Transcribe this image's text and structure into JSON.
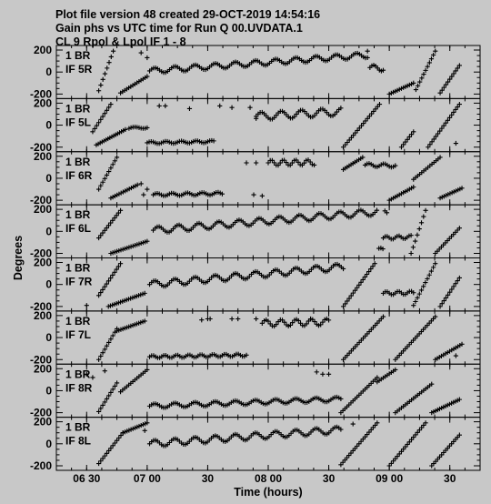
{
  "header": {
    "line1": "Plot file version 48  created 29-OCT-2019 14:54:16",
    "line2": "Gain phs vs UTC time for Run Q 00.UVDATA.1",
    "line3": "CL 9   Rpol & Lpol  IF 1 - 8"
  },
  "chart_data": {
    "type": "scatter",
    "xlabel": "Time (hours)",
    "ylabel": "Degrees",
    "xlim": [
      6.25,
      9.75
    ],
    "ylim": [
      -200,
      200
    ],
    "x_ticks": [
      {
        "value": 6.5,
        "label": "06 30"
      },
      {
        "value": 7.0,
        "label": "07 00"
      },
      {
        "value": 7.5,
        "label": "30"
      },
      {
        "value": 8.0,
        "label": "08 00"
      },
      {
        "value": 8.5,
        "label": "30"
      },
      {
        "value": 9.0,
        "label": "09 00"
      },
      {
        "value": 9.5,
        "label": "30"
      }
    ],
    "y_ticks": [
      {
        "value": 200,
        "label": "200"
      },
      {
        "value": 0,
        "label": "0"
      },
      {
        "value": -200,
        "label": "-200"
      }
    ],
    "colors": {
      "background": "#c8c8c8",
      "marks": "#000000"
    },
    "marker": "plus",
    "panels": [
      {
        "label1": "1 BR",
        "label2": "IF 5R",
        "segments": [
          {
            "x0": 6.6,
            "x1": 6.72,
            "y0": -170,
            "y1": 190
          },
          {
            "x0": 6.78,
            "x1": 7.0,
            "y0": -190,
            "y1": -40
          },
          {
            "x0": 9.0,
            "x1": 9.2,
            "y0": -200,
            "y1": -100
          },
          {
            "x0": 9.22,
            "x1": 9.38,
            "y0": -160,
            "y1": 190
          },
          {
            "x0": 9.42,
            "x1": 9.58,
            "y0": -190,
            "y1": 60
          }
        ],
        "waves": [
          {
            "x0": 7.02,
            "x1": 8.82,
            "base": 10,
            "slope": 80,
            "amp": 25,
            "freq": 6
          },
          {
            "x0": 8.84,
            "x1": 8.95,
            "base": 40,
            "slope": -60,
            "amp": 25,
            "freq": 8
          }
        ],
        "points": [
          [
            6.95,
            175
          ],
          [
            7.0,
            130
          ],
          [
            8.82,
            190
          ]
        ]
      },
      {
        "label1": "1 BR",
        "label2": "IF 5L",
        "segments": [
          {
            "x0": 6.55,
            "x1": 6.7,
            "y0": -60,
            "y1": 190
          },
          {
            "x0": 6.58,
            "x1": 6.82,
            "y0": -180,
            "y1": -40
          },
          {
            "x0": 8.62,
            "x1": 8.92,
            "y0": -200,
            "y1": 190
          },
          {
            "x0": 9.1,
            "x1": 9.2,
            "y0": -200,
            "y1": -60
          },
          {
            "x0": 9.32,
            "x1": 9.58,
            "y0": -200,
            "y1": 190
          }
        ],
        "waves": [
          {
            "x0": 6.85,
            "x1": 7.0,
            "base": -30,
            "slope": 80,
            "amp": 10,
            "freq": 6
          },
          {
            "x0": 7.0,
            "x1": 7.55,
            "base": -160,
            "slope": 20,
            "amp": 10,
            "freq": 8
          },
          {
            "x0": 7.9,
            "x1": 8.6,
            "base": 80,
            "slope": 60,
            "amp": 35,
            "freq": 6
          }
        ],
        "points": [
          [
            7.1,
            175
          ],
          [
            7.15,
            175
          ],
          [
            7.6,
            175
          ],
          [
            7.7,
            160
          ],
          [
            7.85,
            160
          ],
          [
            7.35,
            150
          ],
          [
            7.9,
            60
          ],
          [
            9.55,
            -165
          ]
        ]
      },
      {
        "label1": "1 BR",
        "label2": "IF 6R",
        "segments": [
          {
            "x0": 6.6,
            "x1": 6.75,
            "y0": -100,
            "y1": 190
          },
          {
            "x0": 6.7,
            "x1": 6.92,
            "y0": -180,
            "y1": -60
          },
          {
            "x0": 8.62,
            "x1": 8.78,
            "y0": 80,
            "y1": 190
          },
          {
            "x0": 9.0,
            "x1": 9.2,
            "y0": -200,
            "y1": -80
          },
          {
            "x0": 9.2,
            "x1": 9.42,
            "y0": -10,
            "y1": 190
          },
          {
            "x0": 9.42,
            "x1": 9.6,
            "y0": -180,
            "y1": -90
          }
        ],
        "waves": [
          {
            "x0": 7.05,
            "x1": 7.62,
            "base": -150,
            "slope": 20,
            "amp": 12,
            "freq": 8
          },
          {
            "x0": 8.0,
            "x1": 8.38,
            "base": 140,
            "slope": 10,
            "amp": 25,
            "freq": 10
          },
          {
            "x0": 8.8,
            "x1": 9.05,
            "base": 120,
            "slope": -20,
            "amp": 15,
            "freq": 8
          }
        ],
        "points": [
          [
            6.95,
            -50
          ],
          [
            6.97,
            -150
          ],
          [
            7.0,
            -100
          ],
          [
            7.82,
            140
          ],
          [
            7.88,
            -150
          ],
          [
            7.9,
            140
          ],
          [
            7.95,
            -160
          ]
        ]
      },
      {
        "label1": "1 BR",
        "label2": "IF 6L",
        "segments": [
          {
            "x0": 6.6,
            "x1": 6.78,
            "y0": -60,
            "y1": 190
          },
          {
            "x0": 6.7,
            "x1": 7.0,
            "y0": -200,
            "y1": -90
          },
          {
            "x0": 9.18,
            "x1": 9.3,
            "y0": -200,
            "y1": 190
          },
          {
            "x0": 9.38,
            "x1": 9.58,
            "y0": -200,
            "y1": 30
          }
        ],
        "waves": [
          {
            "x0": 7.05,
            "x1": 8.98,
            "base": 10,
            "slope": 90,
            "amp": 30,
            "freq": 6
          },
          {
            "x0": 8.95,
            "x1": 9.18,
            "base": -60,
            "slope": 40,
            "amp": 15,
            "freq": 10
          }
        ],
        "points": []
      },
      {
        "label1": "1 BR",
        "label2": "IF 7R",
        "segments": [
          {
            "x0": 6.6,
            "x1": 6.78,
            "y0": -100,
            "y1": 190
          },
          {
            "x0": 6.68,
            "x1": 6.98,
            "y0": -200,
            "y1": -80
          },
          {
            "x0": 8.62,
            "x1": 8.88,
            "y0": -200,
            "y1": 190
          },
          {
            "x0": 9.2,
            "x1": 9.38,
            "y0": -190,
            "y1": 190
          },
          {
            "x0": 9.42,
            "x1": 9.58,
            "y0": -200,
            "y1": 60
          }
        ],
        "waves": [
          {
            "x0": 7.02,
            "x1": 8.62,
            "base": 0,
            "slope": 100,
            "amp": 30,
            "freq": 6
          },
          {
            "x0": 8.95,
            "x1": 9.2,
            "base": -80,
            "slope": 20,
            "amp": 15,
            "freq": 10
          }
        ],
        "points": [
          [
            6.5,
            -190
          ]
        ]
      },
      {
        "label1": "1 BR",
        "label2": "IF 7L",
        "segments": [
          {
            "x0": 6.6,
            "x1": 6.75,
            "y0": -200,
            "y1": 80
          },
          {
            "x0": 6.75,
            "x1": 6.98,
            "y0": 60,
            "y1": 150
          },
          {
            "x0": 8.62,
            "x1": 8.95,
            "y0": -200,
            "y1": 190
          },
          {
            "x0": 9.05,
            "x1": 9.38,
            "y0": -200,
            "y1": 190
          },
          {
            "x0": 9.38,
            "x1": 9.6,
            "y0": -200,
            "y1": -60
          }
        ],
        "waves": [
          {
            "x0": 7.02,
            "x1": 7.82,
            "base": -175,
            "slope": 20,
            "amp": 12,
            "freq": 10
          },
          {
            "x0": 7.95,
            "x1": 8.5,
            "base": 130,
            "slope": 20,
            "amp": 30,
            "freq": 8
          }
        ],
        "points": [
          [
            7.7,
            170
          ],
          [
            7.75,
            170
          ],
          [
            7.5,
            170
          ],
          [
            7.52,
            170
          ],
          [
            7.45,
            160
          ],
          [
            7.9,
            170
          ],
          [
            8.35,
            170
          ],
          [
            9.55,
            -165
          ]
        ]
      },
      {
        "label1": "1 BR",
        "label2": "IF 8R",
        "segments": [
          {
            "x0": 6.6,
            "x1": 6.75,
            "y0": -190,
            "y1": 70
          },
          {
            "x0": 6.78,
            "x1": 7.0,
            "y0": -10,
            "y1": 190
          },
          {
            "x0": 8.6,
            "x1": 8.9,
            "y0": -200,
            "y1": 120
          },
          {
            "x0": 8.9,
            "x1": 9.05,
            "y0": 80,
            "y1": 190
          },
          {
            "x0": 9.05,
            "x1": 9.35,
            "y0": -200,
            "y1": 60
          },
          {
            "x0": 9.35,
            "x1": 9.58,
            "y0": -200,
            "y1": -80
          }
        ],
        "waves": [
          {
            "x0": 7.02,
            "x1": 8.6,
            "base": -140,
            "slope": 40,
            "amp": 20,
            "freq": 6
          }
        ],
        "points": [
          [
            6.5,
            150
          ],
          [
            6.55,
            120
          ],
          [
            6.65,
            180
          ],
          [
            8.45,
            150
          ],
          [
            8.5,
            150
          ],
          [
            8.4,
            170
          ]
        ]
      },
      {
        "label1": "1 BR",
        "label2": "IF 8L",
        "segments": [
          {
            "x0": 6.6,
            "x1": 6.8,
            "y0": -180,
            "y1": 100
          },
          {
            "x0": 6.8,
            "x1": 7.0,
            "y0": 100,
            "y1": 190
          },
          {
            "x0": 8.6,
            "x1": 8.9,
            "y0": -190,
            "y1": 190
          },
          {
            "x0": 9.0,
            "x1": 9.3,
            "y0": -200,
            "y1": 190
          },
          {
            "x0": 9.35,
            "x1": 9.58,
            "y0": -200,
            "y1": 80
          }
        ],
        "waves": [
          {
            "x0": 7.02,
            "x1": 8.6,
            "base": 0,
            "slope": 80,
            "amp": 30,
            "freq": 6
          }
        ],
        "points": [
          [
            6.98,
            120
          ],
          [
            8.7,
            180
          ]
        ]
      }
    ]
  }
}
